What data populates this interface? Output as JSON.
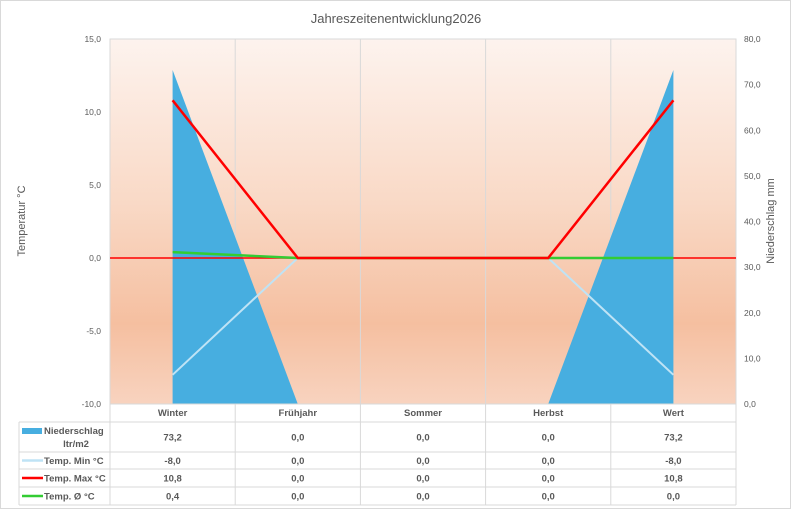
{
  "chart_data": {
    "type": "combo",
    "title": "Jahreszeitenentwicklung2026",
    "categories": [
      "Winter",
      "Frühjahr",
      "Sommer",
      "Herbst",
      "Wert"
    ],
    "ylabel": "Temperatur °C",
    "y2label": "Niederschlag mm",
    "ylim": [
      -10,
      15
    ],
    "y2lim": [
      0,
      80
    ],
    "yticks": [
      "15,0",
      "10,0",
      "5,0",
      "0,0",
      "-5,0",
      "-10,0"
    ],
    "y2ticks": [
      "80,0",
      "70,0",
      "60,0",
      "50,0",
      "40,0",
      "30,0",
      "20,0",
      "10,0",
      "0,0"
    ],
    "series": [
      {
        "name": "Niederschlag ltr/m2",
        "type": "area",
        "axis": "right",
        "color": "#47aee0",
        "values": [
          73.2,
          0,
          0,
          0,
          73.2
        ],
        "labels": [
          "73,2",
          "0,0",
          "0,0",
          "0,0",
          "73,2"
        ]
      },
      {
        "name": "Temp. Min °C",
        "type": "line",
        "axis": "left",
        "color": "#bfe3f5",
        "values": [
          -8,
          0,
          0,
          0,
          -8
        ],
        "labels": [
          "-8,0",
          "0,0",
          "0,0",
          "0,0",
          "-8,0"
        ]
      },
      {
        "name": "Temp. Max °C",
        "type": "line",
        "axis": "left",
        "color": "#ff0000",
        "values": [
          10.8,
          0,
          0,
          0,
          10.8
        ],
        "labels": [
          "10,8",
          "0,0",
          "0,0",
          "0,0",
          "10,8"
        ]
      },
      {
        "name": "Temp. Ø °C",
        "type": "line",
        "axis": "left",
        "color": "#33cc33",
        "values": [
          0.4,
          0,
          0,
          0,
          0
        ],
        "labels": [
          "0,4",
          "0,0",
          "0,0",
          "0,0",
          "0,0"
        ]
      }
    ],
    "legend": "data-table"
  }
}
